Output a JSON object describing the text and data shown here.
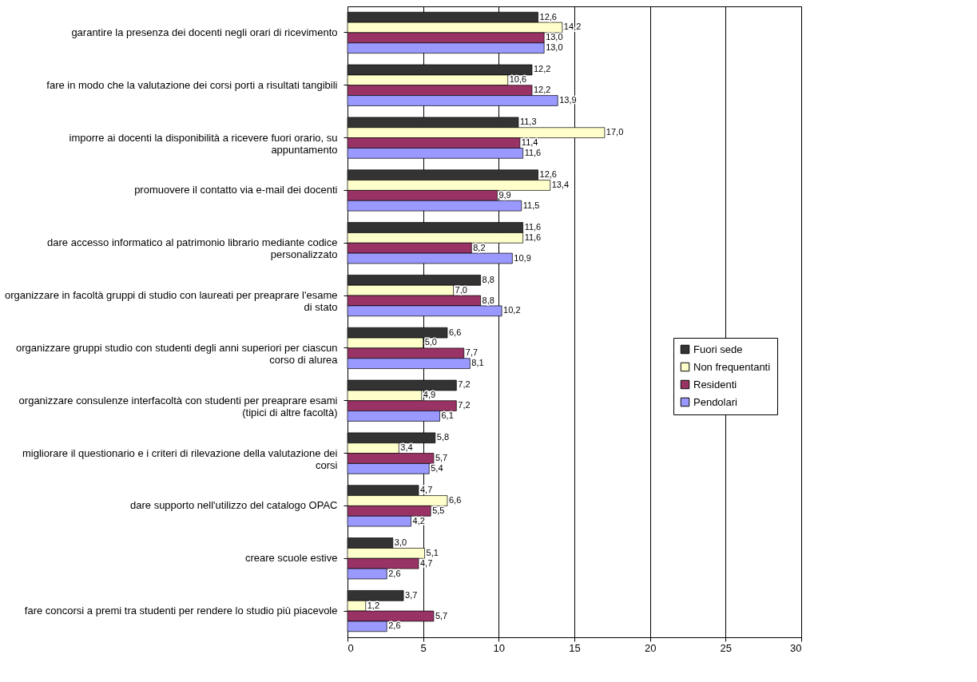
{
  "chart_data": {
    "type": "bar",
    "orientation": "horizontal",
    "categories": [
      "garantire la presenza dei docenti negli orari di ricevimento",
      "fare in modo che la valutazione dei corsi porti a risultati tangibili",
      "imporre ai docenti la disponibilità a ricevere fuori orario, su appuntamento",
      "promuovere il contatto via e-mail dei docenti",
      "dare accesso informatico al patrimonio librario mediante codice personalizzato",
      "organizzare in facoltà gruppi di studio con laureati per preaprare l'esame di stato",
      "organizzare gruppi studio con studenti degli anni superiori per ciascun corso di alurea",
      "organizzare consulenze interfacoltà con studenti per preaprare esami (tipici di altre facoltà)",
      "migliorare il questionario e i criteri di rilevazione della valutazione dei corsi",
      "dare supporto nell'utilizzo del catalogo OPAC",
      "creare scuole estive",
      "fare concorsi a premi tra studenti per rendere lo studio più piacevole"
    ],
    "series": [
      {
        "name": "Fuori sede",
        "color": "#333333",
        "values": [
          12.6,
          12.2,
          11.3,
          12.6,
          11.6,
          8.8,
          6.6,
          7.2,
          5.8,
          4.7,
          3.0,
          3.7
        ],
        "value_labels": [
          "12,6",
          "12,2",
          "11,3",
          "12,6",
          "11,6",
          "8,8",
          "6,6",
          "7,2",
          "5,8",
          "4,7",
          "3,0",
          "3,7"
        ]
      },
      {
        "name": "Non frequentanti",
        "color": "#ffffcc",
        "values": [
          14.2,
          10.6,
          17.0,
          13.4,
          11.6,
          7.0,
          5.0,
          4.9,
          3.4,
          6.6,
          5.1,
          1.2
        ],
        "value_labels": [
          "14,2",
          "10,6",
          "17,0",
          "13,4",
          "11,6",
          "7,0",
          "5,0",
          "4,9",
          "3,4",
          "6,6",
          "5,1",
          "1,2"
        ]
      },
      {
        "name": "Residenti",
        "color": "#993366",
        "values": [
          13.0,
          12.2,
          11.4,
          9.9,
          8.2,
          8.8,
          7.7,
          7.2,
          5.7,
          5.5,
          4.7,
          5.7
        ],
        "value_labels": [
          "13,0",
          "12,2",
          "11,4",
          "9,9",
          "8,2",
          "8,8",
          "7,7",
          "7,2",
          "5,7",
          "5,5",
          "4,7",
          "5,7"
        ]
      },
      {
        "name": "Pendolari",
        "color": "#9999ff",
        "values": [
          13.0,
          13.9,
          11.6,
          11.5,
          10.9,
          10.2,
          8.1,
          6.1,
          5.4,
          4.2,
          2.6,
          2.6
        ],
        "value_labels": [
          "13,0",
          "13,9",
          "11,6",
          "11,5",
          "10,9",
          "10,2",
          "8,1",
          "6,1",
          "5,4",
          "4,2",
          "2,6",
          "2,6"
        ]
      }
    ],
    "xlim": [
      0,
      30
    ],
    "xticks": [
      0,
      5,
      10,
      15,
      20,
      25,
      30
    ],
    "grid": "x",
    "legend": "right"
  }
}
